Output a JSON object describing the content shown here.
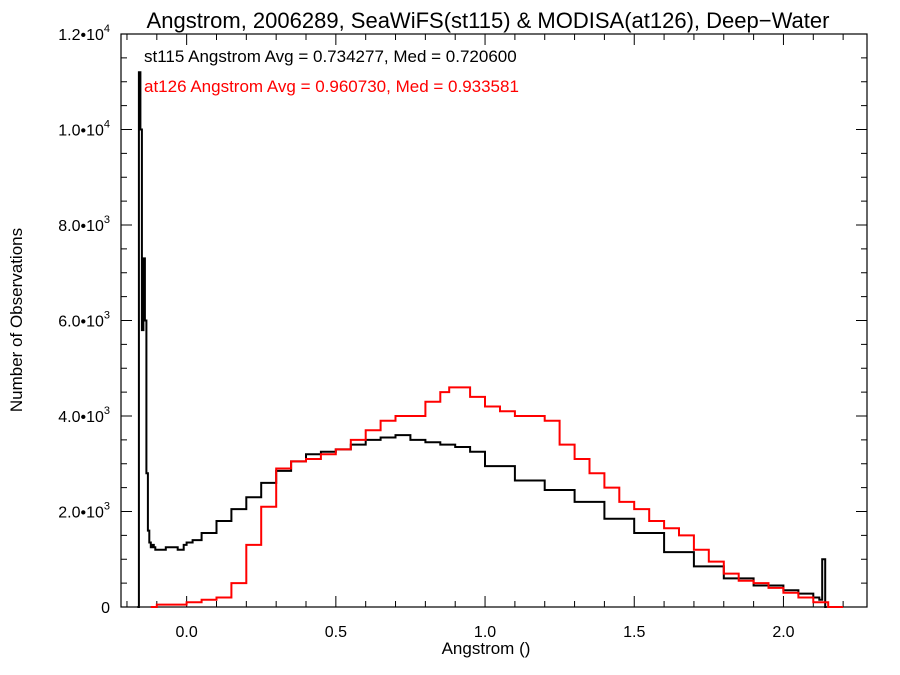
{
  "chart_data": {
    "type": "line",
    "title": "Angstrom, 2006289, SeaWiFS(st115) & MODISA(at126), Deep−Water",
    "xlabel": "Angstrom ()",
    "ylabel": "Number of Observations",
    "xlim": [
      -0.22,
      2.28
    ],
    "ylim": [
      0,
      12000
    ],
    "x_ticks": [
      {
        "value": 0.0,
        "label": "0.0"
      },
      {
        "value": 0.5,
        "label": "0.5"
      },
      {
        "value": 1.0,
        "label": "1.0"
      },
      {
        "value": 1.5,
        "label": "1.5"
      },
      {
        "value": 2.0,
        "label": "2.0"
      }
    ],
    "y_ticks": [
      {
        "value": 0,
        "mant": "0",
        "exp": ""
      },
      {
        "value": 2000,
        "mant": "2.0•10",
        "exp": "3"
      },
      {
        "value": 4000,
        "mant": "4.0•10",
        "exp": "3"
      },
      {
        "value": 6000,
        "mant": "6.0•10",
        "exp": "3"
      },
      {
        "value": 8000,
        "mant": "8.0•10",
        "exp": "3"
      },
      {
        "value": 10000,
        "mant": "1.0•10",
        "exp": "4"
      },
      {
        "value": 12000,
        "mant": "1.2•10",
        "exp": "4"
      }
    ],
    "annotations": [
      "st115 Angstrom Avg = 0.734277, Med = 0.720600",
      "at126 Angstrom Avg = 0.960730, Med = 0.933581"
    ],
    "series": [
      {
        "color": "#000000",
        "x": [
          -0.165,
          -0.16,
          -0.155,
          -0.15,
          -0.145,
          -0.14,
          -0.135,
          -0.13,
          -0.125,
          -0.12,
          -0.115,
          -0.11,
          -0.105,
          -0.1,
          -0.09,
          -0.07,
          -0.05,
          -0.03,
          -0.01,
          0.0,
          0.02,
          0.05,
          0.1,
          0.15,
          0.2,
          0.25,
          0.3,
          0.35,
          0.4,
          0.45,
          0.5,
          0.55,
          0.6,
          0.65,
          0.7,
          0.75,
          0.8,
          0.85,
          0.9,
          0.95,
          1.0,
          1.1,
          1.2,
          1.3,
          1.4,
          1.5,
          1.6,
          1.7,
          1.8,
          1.9,
          2.0,
          2.05,
          2.1,
          2.12,
          2.13,
          2.14,
          2.145
        ],
        "y": [
          0,
          11200,
          10000,
          5800,
          7300,
          6000,
          2800,
          1600,
          1350,
          1250,
          1300,
          1250,
          1200,
          1200,
          1200,
          1250,
          1250,
          1200,
          1300,
          1350,
          1400,
          1550,
          1800,
          2050,
          2300,
          2600,
          2850,
          3050,
          3200,
          3250,
          3300,
          3400,
          3500,
          3550,
          3600,
          3500,
          3450,
          3400,
          3350,
          3250,
          2950,
          2650,
          2450,
          2200,
          1850,
          1550,
          1150,
          850,
          600,
          450,
          350,
          280,
          200,
          150,
          1000,
          0,
          0
        ]
      },
      {
        "color": "#ff0000",
        "x": [
          -0.12,
          -0.1,
          -0.05,
          0.0,
          0.05,
          0.1,
          0.15,
          0.2,
          0.25,
          0.3,
          0.35,
          0.4,
          0.45,
          0.5,
          0.55,
          0.6,
          0.65,
          0.7,
          0.75,
          0.8,
          0.85,
          0.88,
          0.9,
          0.95,
          1.0,
          1.05,
          1.1,
          1.15,
          1.2,
          1.25,
          1.3,
          1.35,
          1.4,
          1.45,
          1.5,
          1.55,
          1.6,
          1.65,
          1.7,
          1.75,
          1.8,
          1.85,
          1.9,
          1.95,
          2.0,
          2.05,
          2.1,
          2.15,
          2.2
        ],
        "y": [
          0,
          50,
          50,
          100,
          150,
          200,
          500,
          1300,
          2100,
          2900,
          3050,
          3100,
          3200,
          3300,
          3500,
          3700,
          3900,
          4000,
          4000,
          4300,
          4500,
          4600,
          4600,
          4400,
          4200,
          4100,
          4000,
          4000,
          3900,
          3400,
          3100,
          2800,
          2500,
          2200,
          2050,
          1800,
          1650,
          1500,
          1200,
          950,
          700,
          550,
          500,
          400,
          300,
          200,
          100,
          0,
          0
        ]
      }
    ]
  }
}
